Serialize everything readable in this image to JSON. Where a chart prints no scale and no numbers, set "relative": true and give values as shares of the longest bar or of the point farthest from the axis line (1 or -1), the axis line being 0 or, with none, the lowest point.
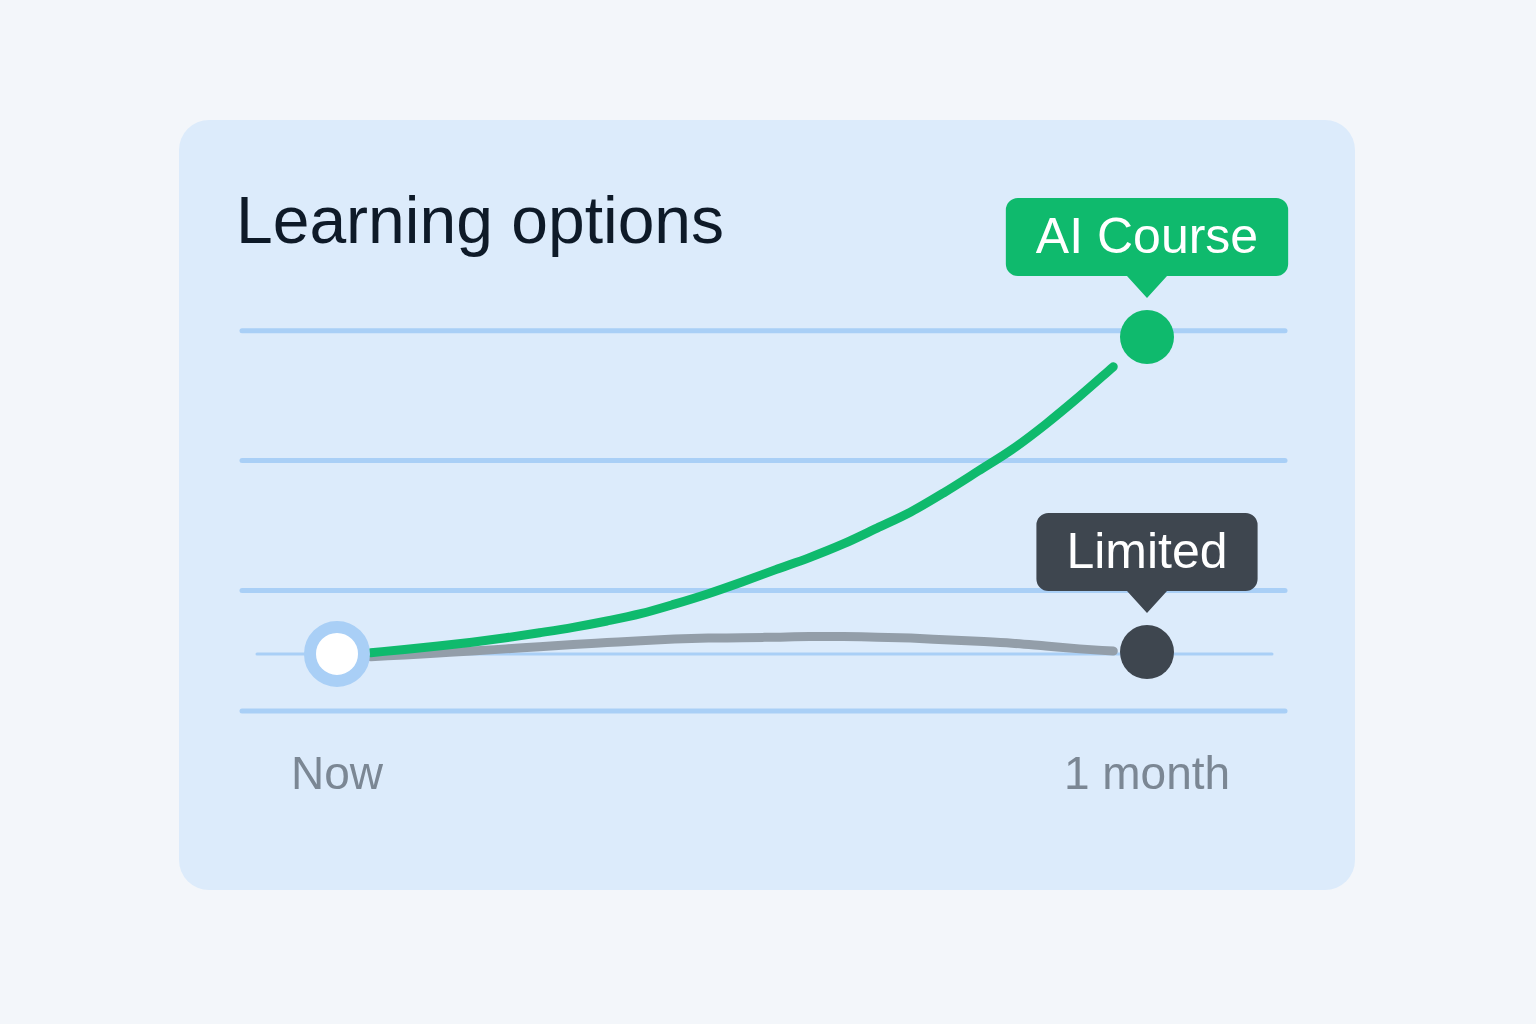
{
  "chart_data": {
    "type": "line",
    "title": "Learning options",
    "relative": true,
    "categories": [
      "Now",
      null,
      null,
      null,
      null,
      null,
      null,
      null,
      null,
      null,
      null,
      null,
      null,
      null,
      null,
      null,
      null,
      null,
      null,
      null,
      null,
      null,
      null,
      null,
      "1 month"
    ],
    "series": [
      {
        "type": "line",
        "color": "#0fba6d",
        "values": [
          null,
          0.004,
          0.014,
          0.025,
          0.037,
          0.051,
          0.067,
          0.084,
          0.104,
          0.127,
          0.157,
          0.19,
          0.227,
          0.266,
          0.304,
          0.347,
          0.397,
          0.448,
          0.51,
          0.577,
          0.645,
          0.725,
          0.813,
          0.906,
          null
        ]
      },
      {
        "type": "line",
        "color": "#939ea9",
        "values": [
          null,
          -0.009,
          -0.003,
          0.003,
          0.009,
          0.016,
          0.023,
          0.03,
          0.036,
          0.042,
          0.047,
          0.05,
          0.051,
          0.053,
          0.055,
          0.055,
          0.053,
          0.05,
          0.045,
          0.04,
          0.034,
          0.025,
          0.016,
          0.009,
          null
        ]
      },
      {
        "type": "scatter",
        "color": "#ffffff",
        "marker": "circle",
        "values": [
          0,
          null,
          null,
          null,
          null,
          null,
          null,
          null,
          null,
          null,
          null,
          null,
          null,
          null,
          null,
          null,
          null,
          null,
          null,
          null,
          null,
          null,
          null,
          null,
          null
        ]
      },
      {
        "type": "scatter",
        "name": "AI Course",
        "color": "#0fba6d",
        "marker": "circle",
        "values": [
          null,
          null,
          null,
          null,
          null,
          null,
          null,
          null,
          null,
          null,
          null,
          null,
          null,
          null,
          null,
          null,
          null,
          null,
          null,
          null,
          null,
          null,
          null,
          null,
          1
        ]
      },
      {
        "type": "scatter",
        "name": "Limited",
        "color": "#3e464f",
        "marker": "circle",
        "values": [
          null,
          null,
          null,
          null,
          null,
          null,
          null,
          null,
          null,
          null,
          null,
          null,
          null,
          null,
          null,
          null,
          null,
          null,
          null,
          null,
          null,
          null,
          null,
          null,
          0.006
        ]
      }
    ],
    "ref_lines": [
      {
        "axis": "y",
        "value": -0.18,
        "color": "#a9cff6"
      },
      {
        "axis": "y",
        "value": 0.2,
        "color": "#a9cff6"
      },
      {
        "axis": "y",
        "value": 0.61,
        "color": "#a9cff6"
      },
      {
        "axis": "y",
        "value": 1.02,
        "color": "#a9cff6"
      }
    ],
    "legend": false,
    "line_style": "solid"
  }
}
